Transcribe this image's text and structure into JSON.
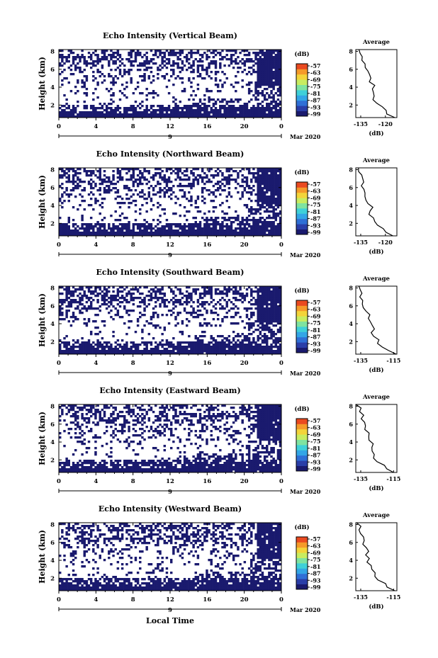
{
  "figure": {
    "x_axis_label": "Local Time",
    "date_label": "Mar 2020",
    "date_axis_day": "9",
    "colorbar_unit": "(dB)",
    "colormap": [
      "#1a1a6e",
      "#2a3ea8",
      "#2f6fd6",
      "#33a6e6",
      "#3fd0d8",
      "#7fe3a0",
      "#c8ec60",
      "#f3d43a",
      "#f59a2a",
      "#ea4a20"
    ],
    "empty_color": "#ffffff"
  },
  "chart_data": [
    {
      "type": "heatmap",
      "title": "Echo Intensity (Vertical Beam)",
      "ylabel": "Height (km)",
      "x_ticks": [
        "0",
        "4",
        "8",
        "12",
        "16",
        "20",
        "0"
      ],
      "xlim": [
        0,
        24
      ],
      "y_ticks": [
        "2",
        "4",
        "6",
        "8"
      ],
      "ylim": [
        0.6,
        8.2
      ],
      "colorbar_ticks": [
        "-57",
        "-63",
        "-69",
        "-75",
        "-81",
        "-87",
        "-93",
        "-99"
      ],
      "colorbar_range": [
        -99,
        -57
      ],
      "profile": {
        "title": "Average",
        "xlabel": "(dB)",
        "x_ticks": [
          "-135",
          "-120"
        ],
        "xlim": [
          -138,
          -113
        ],
        "y_ticks": [
          "2",
          "4",
          "6",
          "8"
        ],
        "ylim": [
          0.6,
          8.2
        ],
        "heights": [
          0.6,
          1.0,
          1.4,
          1.8,
          2.2,
          2.6,
          3.0,
          3.4,
          3.8,
          4.2,
          4.6,
          5.0,
          5.4,
          5.8,
          6.2,
          6.6,
          7.0,
          7.4,
          7.8,
          8.2
        ],
        "values": [
          -114,
          -118,
          -120,
          -123,
          -125,
          -127,
          -126,
          -127,
          -128,
          -127,
          -129,
          -130,
          -130,
          -131,
          -132,
          -133,
          -134,
          -135,
          -136,
          -137
        ]
      }
    },
    {
      "type": "heatmap",
      "title": "Echo Intensity (Northward Beam)",
      "ylabel": "Height (km)",
      "x_ticks": [
        "0",
        "4",
        "8",
        "12",
        "16",
        "20",
        "0"
      ],
      "xlim": [
        0,
        24
      ],
      "y_ticks": [
        "2",
        "4",
        "6",
        "8"
      ],
      "ylim": [
        0.6,
        8.2
      ],
      "colorbar_ticks": [
        "-57",
        "-63",
        "-69",
        "-75",
        "-81",
        "-87",
        "-93",
        "-99"
      ],
      "colorbar_range": [
        -99,
        -57
      ],
      "profile": {
        "title": "Average",
        "xlabel": "(dB)",
        "x_ticks": [
          "-135",
          "-120"
        ],
        "xlim": [
          -138,
          -113
        ],
        "y_ticks": [
          "2",
          "4",
          "6",
          "8"
        ],
        "ylim": [
          0.6,
          8.2
        ],
        "heights": [
          0.6,
          1.0,
          1.4,
          1.8,
          2.2,
          2.6,
          3.0,
          3.4,
          3.8,
          4.2,
          4.6,
          5.0,
          5.4,
          5.8,
          6.2,
          6.6,
          7.0,
          7.4,
          7.8,
          8.2
        ],
        "values": [
          -115,
          -119,
          -122,
          -125,
          -127,
          -128,
          -129,
          -130,
          -128,
          -131,
          -132,
          -132,
          -133,
          -133,
          -134,
          -134,
          -135,
          -135,
          -136,
          -137
        ]
      }
    },
    {
      "type": "heatmap",
      "title": "Echo Intensity (Southward Beam)",
      "ylabel": "Height (km)",
      "x_ticks": [
        "0",
        "4",
        "8",
        "12",
        "16",
        "20",
        "0"
      ],
      "xlim": [
        0,
        24
      ],
      "y_ticks": [
        "2",
        "4",
        "6",
        "8"
      ],
      "ylim": [
        0.6,
        8.2
      ],
      "colorbar_ticks": [
        "-57",
        "-63",
        "-69",
        "-75",
        "-81",
        "-87",
        "-93",
        "-99"
      ],
      "colorbar_range": [
        -99,
        -57
      ],
      "profile": {
        "title": "Average",
        "xlabel": "(dB)",
        "x_ticks": [
          "-135",
          "-115"
        ],
        "xlim": [
          -138,
          -113
        ],
        "y_ticks": [
          "2",
          "4",
          "6",
          "8"
        ],
        "ylim": [
          0.6,
          8.2
        ],
        "heights": [
          0.6,
          1.0,
          1.4,
          1.8,
          2.2,
          2.6,
          3.0,
          3.4,
          3.8,
          4.2,
          4.6,
          5.0,
          5.4,
          5.8,
          6.2,
          6.6,
          7.0,
          7.4,
          7.8,
          8.2
        ],
        "values": [
          -114,
          -118,
          -121,
          -124,
          -125,
          -127,
          -128,
          -127,
          -129,
          -129,
          -131,
          -130,
          -132,
          -133,
          -133,
          -134,
          -135,
          -135,
          -136,
          -137
        ]
      }
    },
    {
      "type": "heatmap",
      "title": "Echo Intensity (Eastward Beam)",
      "ylabel": "Height (km)",
      "x_ticks": [
        "0",
        "4",
        "8",
        "12",
        "16",
        "20",
        "0"
      ],
      "xlim": [
        0,
        24
      ],
      "y_ticks": [
        "2",
        "4",
        "6",
        "8"
      ],
      "ylim": [
        0.6,
        8.2
      ],
      "colorbar_ticks": [
        "-57",
        "-63",
        "-69",
        "-75",
        "-81",
        "-87",
        "-93",
        "-99"
      ],
      "colorbar_range": [
        -99,
        -57
      ],
      "profile": {
        "title": "Average",
        "xlabel": "(dB)",
        "x_ticks": [
          "-135",
          "-115"
        ],
        "xlim": [
          -138,
          -113
        ],
        "y_ticks": [
          "2",
          "4",
          "6",
          "8"
        ],
        "ylim": [
          0.6,
          8.2
        ],
        "heights": [
          0.6,
          1.0,
          1.4,
          1.8,
          2.2,
          2.6,
          3.0,
          3.4,
          3.8,
          4.2,
          4.6,
          5.0,
          5.4,
          5.8,
          6.2,
          6.6,
          7.0,
          7.4,
          7.8,
          8.2
        ],
        "values": [
          -114,
          -118,
          -121,
          -124,
          -126,
          -127,
          -128,
          -129,
          -127,
          -129,
          -130,
          -131,
          -132,
          -132,
          -133,
          -134,
          -134,
          -135,
          -136,
          -137
        ]
      }
    },
    {
      "type": "heatmap",
      "title": "Echo Intensity (Westward Beam)",
      "ylabel": "Height (km)",
      "x_ticks": [
        "0",
        "4",
        "8",
        "12",
        "16",
        "20",
        "0"
      ],
      "xlim": [
        0,
        24
      ],
      "y_ticks": [
        "2",
        "4",
        "6",
        "8"
      ],
      "ylim": [
        0.6,
        8.2
      ],
      "colorbar_ticks": [
        "-57",
        "-63",
        "-69",
        "-75",
        "-81",
        "-87",
        "-93",
        "-99"
      ],
      "colorbar_range": [
        -99,
        -57
      ],
      "profile": {
        "title": "Average",
        "xlabel": "(dB)",
        "x_ticks": [
          "-135",
          "-115"
        ],
        "xlim": [
          -138,
          -113
        ],
        "y_ticks": [
          "2",
          "4",
          "6",
          "8"
        ],
        "ylim": [
          0.6,
          8.2
        ],
        "heights": [
          0.6,
          1.0,
          1.4,
          1.8,
          2.2,
          2.6,
          3.0,
          3.4,
          3.8,
          4.2,
          4.6,
          5.0,
          5.4,
          5.8,
          6.2,
          6.6,
          7.0,
          7.4,
          7.8,
          8.2
        ],
        "values": [
          -114,
          -118,
          -121,
          -124,
          -126,
          -127,
          -128,
          -129,
          -130,
          -129,
          -131,
          -131,
          -132,
          -133,
          -133,
          -134,
          -135,
          -136,
          -136,
          -137
        ]
      }
    }
  ]
}
